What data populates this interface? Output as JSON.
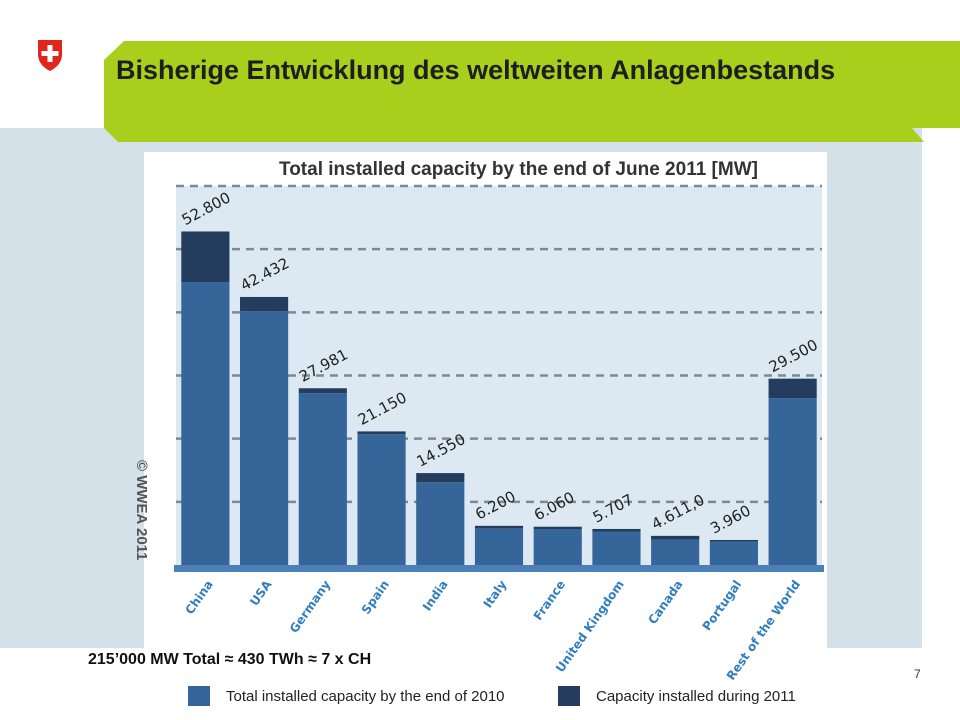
{
  "slide": {
    "title": "Bisherige Entwicklung des weltweiten Anlagenbestands",
    "caption": "215’000 MW Total ≈ 430 TWh ≈ 7 x CH",
    "page_number": "7",
    "copyright": "© WWEA 2011",
    "logo": "swiss-cross-shield-icon",
    "banner_color": "#a8cf1c",
    "background_color": "#d4e1e8"
  },
  "chart_data": {
    "type": "bar",
    "title": "Total installed capacity by the end of June 2011 [MW]",
    "categories": [
      "China",
      "USA",
      "Germany",
      "Spain",
      "India",
      "Italy",
      "France",
      "United Kingdom",
      "Canada",
      "Portugal",
      "Rest of the World"
    ],
    "total_labels": [
      "52.800",
      "42.432",
      "27.981",
      "21.150",
      "14.550",
      "6.200",
      "6.060",
      "5.707",
      "4.611,0",
      "3.960",
      "29.500"
    ],
    "series": [
      {
        "name": "Total installed capacity by the end of 2010",
        "color": "#36659a",
        "values": [
          44800,
          40200,
          27200,
          20700,
          13100,
          5800,
          5700,
          5300,
          4000,
          3700,
          26400
        ]
      },
      {
        "name": "Capacity installed during 2011",
        "color": "#243c5d",
        "values": [
          8000,
          2232,
          781,
          450,
          1450,
          400,
          360,
          407,
          611,
          260,
          3100
        ]
      }
    ],
    "ylim": [
      0,
      60000
    ],
    "grid": true,
    "legend": "bottom",
    "decoration": "globe-with-wind-turbine-icon"
  }
}
